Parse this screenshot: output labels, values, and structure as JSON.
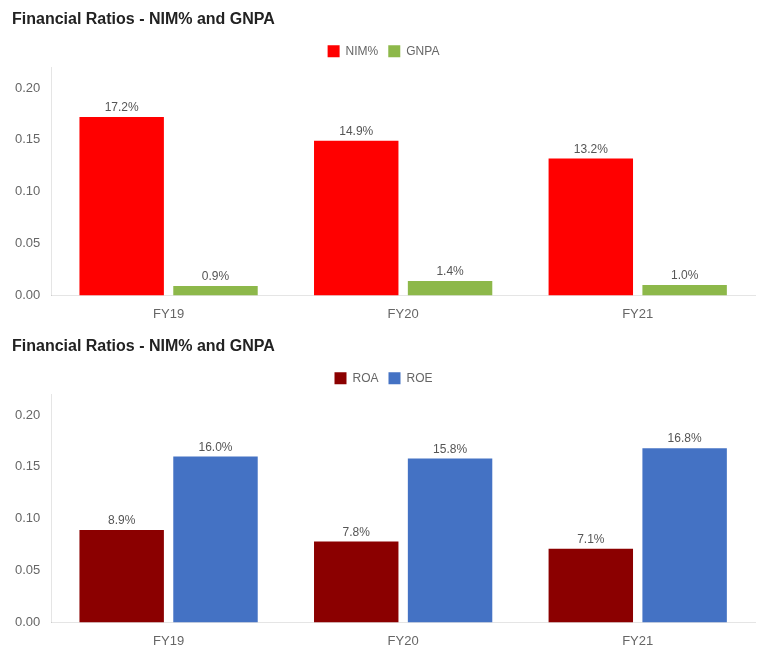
{
  "chart_data": [
    {
      "type": "bar",
      "title": "Financial Ratios - NIM% and GNPA",
      "categories": [
        "FY19",
        "FY20",
        "FY21"
      ],
      "series": [
        {
          "name": "NIM%",
          "color": "#FF0000",
          "values": [
            0.172,
            0.149,
            0.132
          ],
          "value_labels": [
            "17.2%",
            "14.9%",
            "13.2%"
          ]
        },
        {
          "name": "GNPA",
          "color": "#8DB84A",
          "values": [
            0.009,
            0.014,
            0.01
          ],
          "value_labels": [
            "0.9%",
            "1.4%",
            "1.0%"
          ]
        }
      ],
      "ylim": [
        0,
        0.22
      ],
      "yticks": [
        {
          "value": 0,
          "label": "0.00"
        },
        0.05,
        {
          "value": 0.1,
          "label": "0.10"
        },
        0.15,
        {
          "value": 0.2,
          "label": "0.20"
        }
      ],
      "grid": false,
      "legend": "top",
      "data_labels": true
    },
    {
      "type": "bar",
      "title": "Financial Ratios - NIM% and GNPA",
      "categories": [
        "FY19",
        "FY20",
        "FY21"
      ],
      "series": [
        {
          "name": "ROA",
          "color": "#8B0000",
          "values": [
            0.089,
            0.078,
            0.071
          ],
          "value_labels": [
            "8.9%",
            "7.8%",
            "7.1%"
          ]
        },
        {
          "name": "ROE",
          "color": "#4472C4",
          "values": [
            0.16,
            0.158,
            0.168
          ],
          "value_labels": [
            "16.0%",
            "15.8%",
            "16.8%"
          ]
        }
      ],
      "ylim": [
        0,
        0.22
      ],
      "yticks": [
        {
          "value": 0,
          "label": "0.00"
        },
        0.05,
        {
          "value": 0.1,
          "label": "0.10"
        },
        0.15,
        {
          "value": 0.2,
          "label": "0.20"
        }
      ],
      "grid": false,
      "legend": "top",
      "data_labels": true
    }
  ]
}
